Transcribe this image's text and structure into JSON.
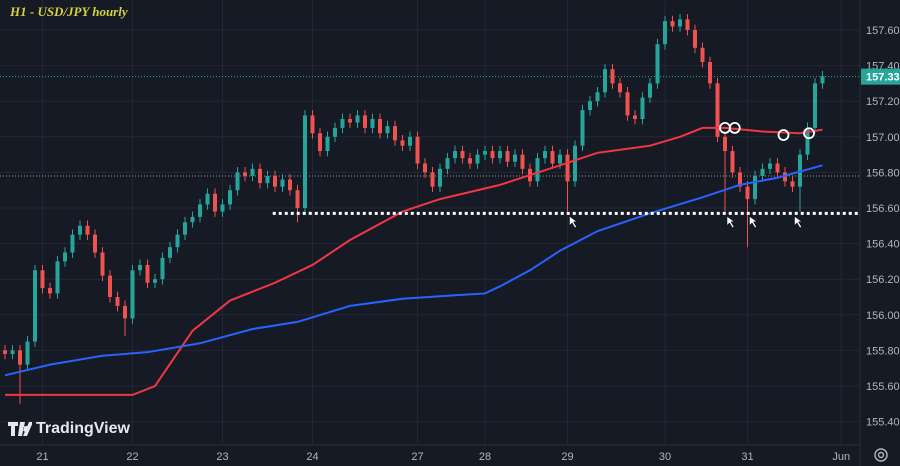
{
  "title": "H1 - USD/JPY hourly",
  "brand": "TradingView",
  "colors": {
    "up": "#26a69a",
    "down": "#ef5350",
    "ma_fast": "#f23645",
    "ma_slow": "#2962ff",
    "bg": "#161a25",
    "grid": "#232734",
    "axis_text": "#b2b5be",
    "price_badge": "#26a69a"
  },
  "chart_data": {
    "type": "candlestick",
    "title": "H1 - USD/JPY hourly",
    "ylim": [
      155.3,
      157.78
    ],
    "y_ticks": [
      "157.600",
      "157.400",
      "157.200",
      "157.000",
      "156.800",
      "156.600",
      "156.400",
      "156.200",
      "156.000",
      "155.800",
      "155.600",
      "155.400"
    ],
    "x_ticks": [
      {
        "label": "21",
        "i": 5
      },
      {
        "label": "22",
        "i": 17
      },
      {
        "label": "23",
        "i": 29
      },
      {
        "label": "24",
        "i": 41
      },
      {
        "label": "27",
        "i": 55
      },
      {
        "label": "28",
        "i": 64
      },
      {
        "label": "29",
        "i": 75
      },
      {
        "label": "30",
        "i": 88
      },
      {
        "label": "31",
        "i": 99
      },
      {
        "label": "Jun",
        "i": 111.5
      }
    ],
    "last_price": "157.338",
    "crosshair_price": 156.78,
    "closes": [
      155.78,
      155.8,
      155.72,
      155.85,
      156.25,
      156.15,
      156.12,
      156.3,
      156.35,
      156.45,
      156.5,
      156.45,
      156.35,
      156.22,
      156.1,
      156.05,
      155.98,
      156.25,
      156.28,
      156.18,
      156.2,
      156.32,
      156.38,
      156.45,
      156.52,
      156.55,
      156.62,
      156.68,
      156.58,
      156.62,
      156.7,
      156.8,
      156.78,
      156.82,
      156.74,
      156.78,
      156.72,
      156.76,
      156.7,
      156.6,
      157.12,
      157.02,
      156.92,
      157.0,
      157.05,
      157.1,
      157.08,
      157.12,
      157.05,
      157.1,
      157.02,
      157.06,
      156.98,
      156.95,
      157.0,
      156.85,
      156.8,
      156.72,
      156.82,
      156.88,
      156.92,
      156.88,
      156.85,
      156.9,
      156.92,
      156.88,
      156.92,
      156.86,
      156.9,
      156.82,
      156.75,
      156.88,
      156.92,
      156.85,
      156.9,
      156.75,
      156.95,
      157.15,
      157.2,
      157.25,
      157.38,
      157.3,
      157.25,
      157.12,
      157.1,
      157.22,
      157.3,
      157.52,
      157.65,
      157.62,
      157.66,
      157.6,
      157.5,
      157.42,
      157.3,
      157.0,
      156.92,
      156.8,
      156.72,
      156.65,
      156.78,
      156.82,
      156.85,
      156.8,
      156.75,
      156.72,
      156.9,
      157.05,
      157.3,
      157.34
    ],
    "first_open": 155.8,
    "long_wick_lows": {
      "2": 155.5,
      "16": 155.88,
      "39": 156.52,
      "75": 156.58,
      "96": 156.58,
      "99": 156.38,
      "106": 156.58
    },
    "series": [
      {
        "name": "MA fast (red)",
        "points": [
          [
            0,
            155.55
          ],
          [
            17,
            155.55
          ],
          [
            20,
            155.6
          ],
          [
            25,
            155.91
          ],
          [
            30,
            156.08
          ],
          [
            36,
            156.18
          ],
          [
            41,
            156.28
          ],
          [
            46,
            156.42
          ],
          [
            53,
            156.58
          ],
          [
            58,
            156.65
          ],
          [
            66,
            156.73
          ],
          [
            74,
            156.84
          ],
          [
            79,
            156.91
          ],
          [
            86,
            156.95
          ],
          [
            90,
            157.0
          ],
          [
            93,
            157.05
          ],
          [
            96,
            157.05
          ],
          [
            101,
            157.03
          ],
          [
            106,
            157.02
          ],
          [
            109,
            157.04
          ]
        ]
      },
      {
        "name": "MA slow (blue)",
        "points": [
          [
            0,
            155.66
          ],
          [
            6,
            155.72
          ],
          [
            13,
            155.77
          ],
          [
            19,
            155.79
          ],
          [
            26,
            155.84
          ],
          [
            33,
            155.92
          ],
          [
            39,
            155.96
          ],
          [
            46,
            156.05
          ],
          [
            53,
            156.09
          ],
          [
            60,
            156.11
          ],
          [
            64,
            156.12
          ],
          [
            66,
            156.16
          ],
          [
            70,
            156.25
          ],
          [
            74,
            156.36
          ],
          [
            79,
            156.47
          ],
          [
            86,
            156.57
          ],
          [
            93,
            156.66
          ],
          [
            98,
            156.73
          ],
          [
            103,
            156.77
          ],
          [
            109,
            156.84
          ]
        ]
      }
    ],
    "annotations": {
      "support_level": 156.57,
      "support_start_i": 35.7,
      "circles": [
        [
          96,
          157.05
        ],
        [
          97.3,
          157.05
        ],
        [
          103.8,
          157.01
        ],
        [
          107.2,
          157.02
        ]
      ],
      "arrows": [
        [
          75,
          156.57
        ],
        [
          96,
          156.57
        ],
        [
          99,
          156.57
        ],
        [
          105,
          156.57
        ]
      ]
    }
  }
}
